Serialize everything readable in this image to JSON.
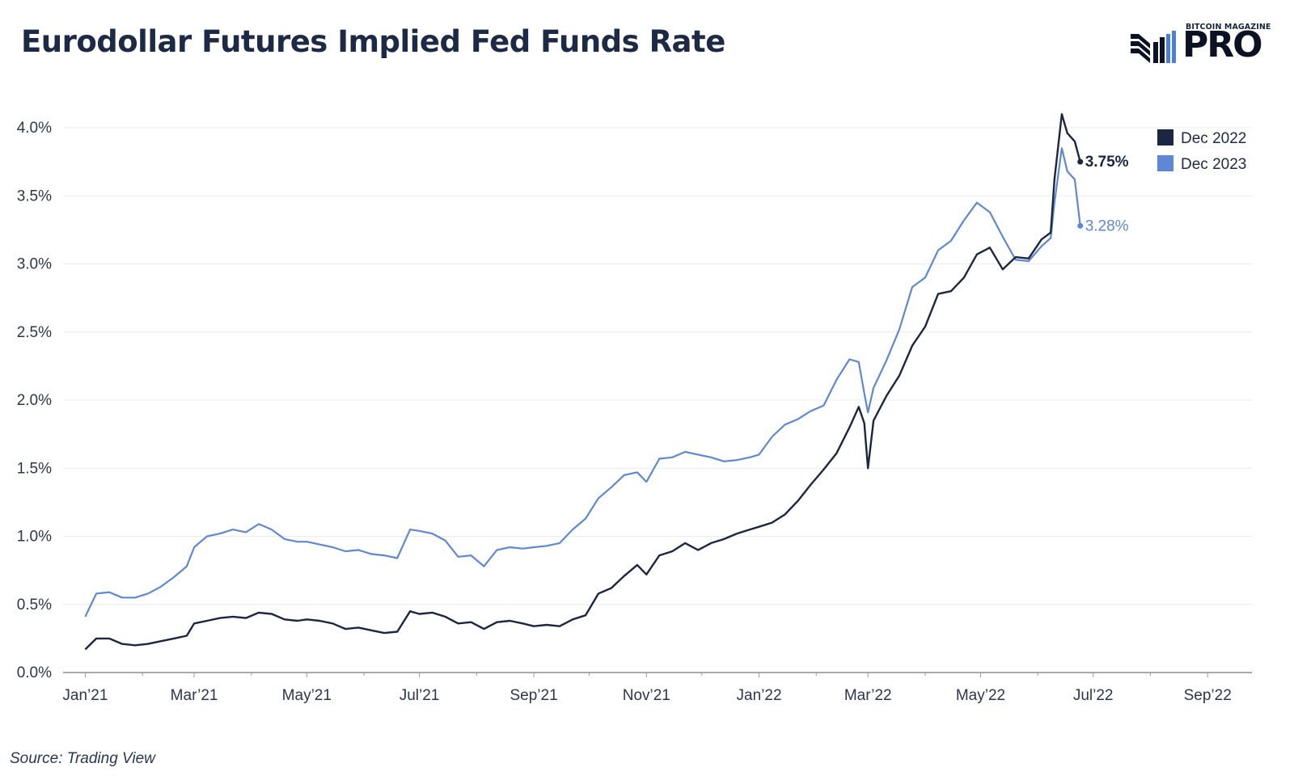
{
  "title": "Eurodollar Futures Implied Fed Funds Rate",
  "source": "Source: Trading View",
  "logo": {
    "small_text": "BITCOIN MAGAZINE",
    "big_text": "PRO",
    "icon": "bars-logo-icon"
  },
  "colors": {
    "dec2022": "#1b2642",
    "dec2023": "#5f88d4",
    "grid": "#ececec",
    "axis": "#555555"
  },
  "chart_data": {
    "type": "line",
    "title": "Eurodollar Futures Implied Fed Funds Rate",
    "xlabel": "",
    "ylabel": "",
    "ylim": [
      0,
      4.0
    ],
    "y_ticks": [
      {
        "value": 0.0,
        "label": "0.0%"
      },
      {
        "value": 0.5,
        "label": "0.5%"
      },
      {
        "value": 1.0,
        "label": "1.0%"
      },
      {
        "value": 1.5,
        "label": "1.5%"
      },
      {
        "value": 2.0,
        "label": "2.0%"
      },
      {
        "value": 2.5,
        "label": "2.5%"
      },
      {
        "value": 3.0,
        "label": "3.0%"
      },
      {
        "value": 3.5,
        "label": "3.5%"
      },
      {
        "value": 4.0,
        "label": "4.0%"
      }
    ],
    "xlim": [
      "2020-12-20",
      "2022-09-25"
    ],
    "x_ticks": [
      {
        "date": "2021-01-01",
        "label": "Jan’21"
      },
      {
        "date": "2021-03-01",
        "label": "Mar’21"
      },
      {
        "date": "2021-05-01",
        "label": "May’21"
      },
      {
        "date": "2021-07-01",
        "label": "Jul’21"
      },
      {
        "date": "2021-09-01",
        "label": "Sep’21"
      },
      {
        "date": "2021-11-01",
        "label": "Nov’21"
      },
      {
        "date": "2022-01-01",
        "label": "Jan’22"
      },
      {
        "date": "2022-03-01",
        "label": "Mar’22"
      },
      {
        "date": "2022-05-01",
        "label": "May’22"
      },
      {
        "date": "2022-07-01",
        "label": "Jul’22"
      },
      {
        "date": "2022-09-01",
        "label": "Sep’22"
      }
    ],
    "grid": true,
    "legend_position": "top-right",
    "series": [
      {
        "name": "Dec 2022",
        "end_label": "3.75%",
        "points": [
          [
            "2021-01-01",
            0.17
          ],
          [
            "2021-01-07",
            0.25
          ],
          [
            "2021-01-14",
            0.25
          ],
          [
            "2021-01-21",
            0.21
          ],
          [
            "2021-01-28",
            0.2
          ],
          [
            "2021-02-04",
            0.21
          ],
          [
            "2021-02-11",
            0.23
          ],
          [
            "2021-02-18",
            0.25
          ],
          [
            "2021-02-25",
            0.27
          ],
          [
            "2021-03-01",
            0.36
          ],
          [
            "2021-03-08",
            0.38
          ],
          [
            "2021-03-15",
            0.4
          ],
          [
            "2021-03-22",
            0.41
          ],
          [
            "2021-03-29",
            0.4
          ],
          [
            "2021-04-05",
            0.44
          ],
          [
            "2021-04-12",
            0.43
          ],
          [
            "2021-04-19",
            0.39
          ],
          [
            "2021-04-26",
            0.38
          ],
          [
            "2021-05-01",
            0.39
          ],
          [
            "2021-05-08",
            0.38
          ],
          [
            "2021-05-15",
            0.36
          ],
          [
            "2021-05-22",
            0.32
          ],
          [
            "2021-05-29",
            0.33
          ],
          [
            "2021-06-05",
            0.31
          ],
          [
            "2021-06-12",
            0.29
          ],
          [
            "2021-06-19",
            0.3
          ],
          [
            "2021-06-26",
            0.45
          ],
          [
            "2021-07-01",
            0.43
          ],
          [
            "2021-07-08",
            0.44
          ],
          [
            "2021-07-15",
            0.41
          ],
          [
            "2021-07-22",
            0.36
          ],
          [
            "2021-07-29",
            0.37
          ],
          [
            "2021-08-05",
            0.32
          ],
          [
            "2021-08-12",
            0.37
          ],
          [
            "2021-08-19",
            0.38
          ],
          [
            "2021-08-26",
            0.36
          ],
          [
            "2021-09-01",
            0.34
          ],
          [
            "2021-09-08",
            0.35
          ],
          [
            "2021-09-15",
            0.34
          ],
          [
            "2021-09-22",
            0.39
          ],
          [
            "2021-09-29",
            0.42
          ],
          [
            "2021-10-06",
            0.58
          ],
          [
            "2021-10-13",
            0.62
          ],
          [
            "2021-10-20",
            0.71
          ],
          [
            "2021-10-27",
            0.79
          ],
          [
            "2021-11-01",
            0.72
          ],
          [
            "2021-11-08",
            0.86
          ],
          [
            "2021-11-15",
            0.89
          ],
          [
            "2021-11-22",
            0.95
          ],
          [
            "2021-11-29",
            0.9
          ],
          [
            "2021-12-06",
            0.95
          ],
          [
            "2021-12-13",
            0.98
          ],
          [
            "2021-12-20",
            1.02
          ],
          [
            "2021-12-27",
            1.05
          ],
          [
            "2022-01-01",
            1.07
          ],
          [
            "2022-01-08",
            1.1
          ],
          [
            "2022-01-15",
            1.16
          ],
          [
            "2022-01-22",
            1.26
          ],
          [
            "2022-01-29",
            1.38
          ],
          [
            "2022-02-05",
            1.49
          ],
          [
            "2022-02-12",
            1.61
          ],
          [
            "2022-02-19",
            1.8
          ],
          [
            "2022-02-24",
            1.95
          ],
          [
            "2022-02-27",
            1.83
          ],
          [
            "2022-03-01",
            1.5
          ],
          [
            "2022-03-04",
            1.85
          ],
          [
            "2022-03-11",
            2.03
          ],
          [
            "2022-03-18",
            2.18
          ],
          [
            "2022-03-25",
            2.4
          ],
          [
            "2022-04-01",
            2.54
          ],
          [
            "2022-04-08",
            2.78
          ],
          [
            "2022-04-15",
            2.8
          ],
          [
            "2022-04-22",
            2.9
          ],
          [
            "2022-04-29",
            3.07
          ],
          [
            "2022-05-06",
            3.12
          ],
          [
            "2022-05-13",
            2.96
          ],
          [
            "2022-05-20",
            3.05
          ],
          [
            "2022-05-27",
            3.04
          ],
          [
            "2022-06-03",
            3.18
          ],
          [
            "2022-06-08",
            3.23
          ],
          [
            "2022-06-10",
            3.62
          ],
          [
            "2022-06-14",
            4.1
          ],
          [
            "2022-06-17",
            3.96
          ],
          [
            "2022-06-21",
            3.9
          ],
          [
            "2022-06-24",
            3.75
          ]
        ]
      },
      {
        "name": "Dec 2023",
        "end_label": "3.28%",
        "points": [
          [
            "2021-01-01",
            0.41
          ],
          [
            "2021-01-07",
            0.58
          ],
          [
            "2021-01-14",
            0.59
          ],
          [
            "2021-01-21",
            0.55
          ],
          [
            "2021-01-28",
            0.55
          ],
          [
            "2021-02-04",
            0.58
          ],
          [
            "2021-02-11",
            0.63
          ],
          [
            "2021-02-18",
            0.7
          ],
          [
            "2021-02-25",
            0.78
          ],
          [
            "2021-03-01",
            0.92
          ],
          [
            "2021-03-08",
            1.0
          ],
          [
            "2021-03-15",
            1.02
          ],
          [
            "2021-03-22",
            1.05
          ],
          [
            "2021-03-29",
            1.03
          ],
          [
            "2021-04-05",
            1.09
          ],
          [
            "2021-04-12",
            1.05
          ],
          [
            "2021-04-19",
            0.98
          ],
          [
            "2021-04-26",
            0.96
          ],
          [
            "2021-05-01",
            0.96
          ],
          [
            "2021-05-08",
            0.94
          ],
          [
            "2021-05-15",
            0.92
          ],
          [
            "2021-05-22",
            0.89
          ],
          [
            "2021-05-29",
            0.9
          ],
          [
            "2021-06-05",
            0.87
          ],
          [
            "2021-06-12",
            0.86
          ],
          [
            "2021-06-19",
            0.84
          ],
          [
            "2021-06-26",
            1.05
          ],
          [
            "2021-07-01",
            1.04
          ],
          [
            "2021-07-08",
            1.02
          ],
          [
            "2021-07-15",
            0.97
          ],
          [
            "2021-07-22",
            0.85
          ],
          [
            "2021-07-29",
            0.86
          ],
          [
            "2021-08-05",
            0.78
          ],
          [
            "2021-08-12",
            0.9
          ],
          [
            "2021-08-19",
            0.92
          ],
          [
            "2021-08-26",
            0.91
          ],
          [
            "2021-09-01",
            0.92
          ],
          [
            "2021-09-08",
            0.93
          ],
          [
            "2021-09-15",
            0.95
          ],
          [
            "2021-09-22",
            1.05
          ],
          [
            "2021-09-29",
            1.13
          ],
          [
            "2021-10-06",
            1.28
          ],
          [
            "2021-10-13",
            1.36
          ],
          [
            "2021-10-20",
            1.45
          ],
          [
            "2021-10-27",
            1.47
          ],
          [
            "2021-11-01",
            1.4
          ],
          [
            "2021-11-08",
            1.57
          ],
          [
            "2021-11-15",
            1.58
          ],
          [
            "2021-11-22",
            1.62
          ],
          [
            "2021-11-29",
            1.6
          ],
          [
            "2021-12-06",
            1.58
          ],
          [
            "2021-12-13",
            1.55
          ],
          [
            "2021-12-20",
            1.56
          ],
          [
            "2021-12-27",
            1.58
          ],
          [
            "2022-01-01",
            1.6
          ],
          [
            "2022-01-08",
            1.73
          ],
          [
            "2022-01-15",
            1.82
          ],
          [
            "2022-01-22",
            1.86
          ],
          [
            "2022-01-29",
            1.92
          ],
          [
            "2022-02-05",
            1.96
          ],
          [
            "2022-02-12",
            2.15
          ],
          [
            "2022-02-19",
            2.3
          ],
          [
            "2022-02-24",
            2.28
          ],
          [
            "2022-02-27",
            2.05
          ],
          [
            "2022-03-01",
            1.91
          ],
          [
            "2022-03-04",
            2.09
          ],
          [
            "2022-03-11",
            2.29
          ],
          [
            "2022-03-18",
            2.52
          ],
          [
            "2022-03-25",
            2.83
          ],
          [
            "2022-04-01",
            2.9
          ],
          [
            "2022-04-08",
            3.1
          ],
          [
            "2022-04-15",
            3.17
          ],
          [
            "2022-04-22",
            3.32
          ],
          [
            "2022-04-29",
            3.45
          ],
          [
            "2022-05-06",
            3.38
          ],
          [
            "2022-05-13",
            3.2
          ],
          [
            "2022-05-20",
            3.03
          ],
          [
            "2022-05-27",
            3.02
          ],
          [
            "2022-06-03",
            3.13
          ],
          [
            "2022-06-08",
            3.19
          ],
          [
            "2022-06-10",
            3.45
          ],
          [
            "2022-06-14",
            3.85
          ],
          [
            "2022-06-17",
            3.68
          ],
          [
            "2022-06-21",
            3.62
          ],
          [
            "2022-06-24",
            3.28
          ]
        ]
      }
    ]
  }
}
